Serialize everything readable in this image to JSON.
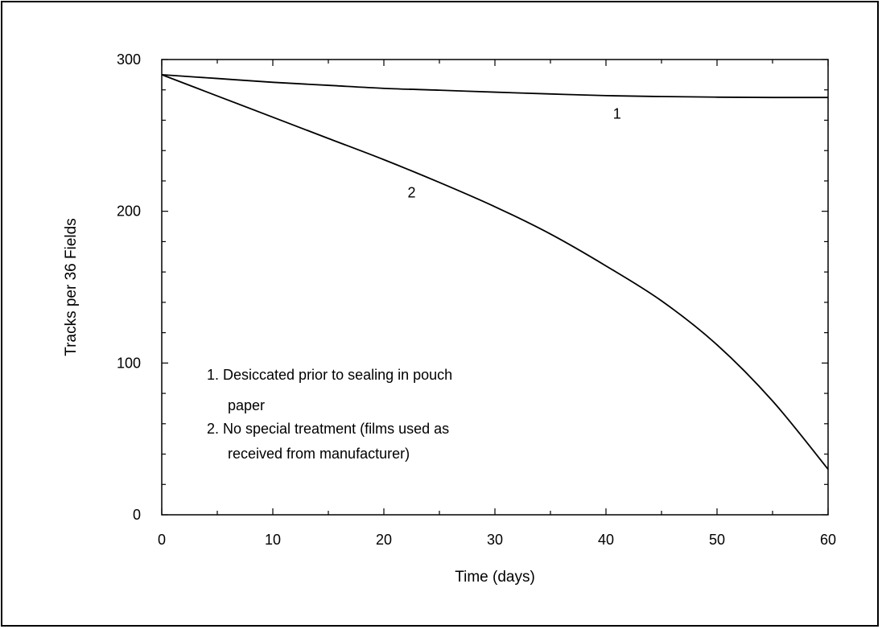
{
  "chart_data": {
    "type": "line",
    "xlabel": "Time (days)",
    "ylabel": "Tracks per 36 Fields",
    "xlim": [
      0,
      60
    ],
    "ylim": [
      0,
      300
    ],
    "x_ticks": [
      "0",
      "10",
      "20",
      "30",
      "40",
      "50",
      "60"
    ],
    "y_ticks": [
      "0",
      "100",
      "200",
      "300"
    ],
    "x_minor_step": 5,
    "y_minor_step": 20,
    "grid": false,
    "series": [
      {
        "name": "1",
        "x": [
          0,
          5,
          10,
          15,
          20,
          25,
          30,
          35,
          40,
          45,
          50,
          55,
          60
        ],
        "y": [
          290,
          287.5,
          285,
          283,
          281,
          279.8,
          278.5,
          277.3,
          276.2,
          275.6,
          275.2,
          275,
          275
        ]
      },
      {
        "name": "2",
        "x": [
          0,
          5,
          10,
          15,
          20,
          25,
          30,
          35,
          40,
          45,
          50,
          55,
          60
        ],
        "y": [
          290,
          276,
          262,
          248,
          234,
          219,
          203,
          185,
          164,
          141,
          112,
          75,
          30
        ]
      }
    ],
    "curve_labels": [
      {
        "text": "1",
        "x": 41,
        "y": 261
      },
      {
        "text": "2",
        "x": 22.5,
        "y": 209
      }
    ],
    "legend": {
      "placement": "lower-left",
      "lines": [
        "1.  Desiccated prior to sealing in pouch",
        "paper",
        "2.  No special treatment (films used as",
        "received from manufacturer)"
      ]
    }
  }
}
